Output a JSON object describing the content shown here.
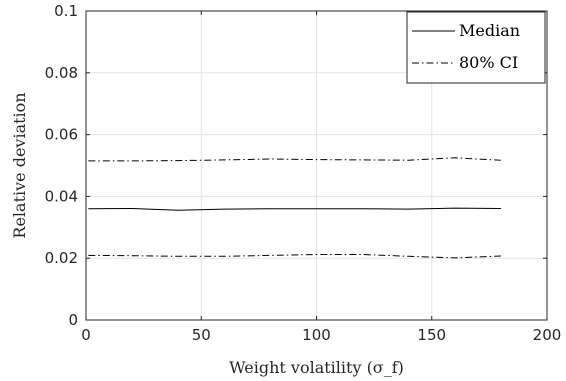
{
  "chart_data": {
    "type": "line",
    "xlabel": "Weight volatility (σ_f)",
    "ylabel": "Relative deviation",
    "xlim": [
      0,
      200
    ],
    "ylim": [
      0,
      0.1
    ],
    "xticks": [
      0,
      50,
      100,
      150,
      200
    ],
    "xtick_labels": [
      "0",
      "50",
      "100",
      "150",
      "200"
    ],
    "yticks": [
      0,
      0.02,
      0.04,
      0.06,
      0.08,
      0.1
    ],
    "ytick_labels": [
      "0",
      "0.02",
      "0.04",
      "0.06",
      "0.08",
      "0.1"
    ],
    "grid": true,
    "legend_position": "top-right",
    "x": [
      1,
      20,
      40,
      60,
      80,
      100,
      120,
      140,
      160,
      180
    ],
    "series": [
      {
        "name": "Median",
        "style": "solid",
        "color": "#000000",
        "values": [
          0.036,
          0.0361,
          0.0355,
          0.0359,
          0.036,
          0.036,
          0.036,
          0.0359,
          0.0362,
          0.0361
        ]
      },
      {
        "name": "80% CI",
        "style": "dashdot",
        "color": "#000000",
        "values": [
          0.0515,
          0.0515,
          0.0516,
          0.0518,
          0.0521,
          0.0519,
          0.0518,
          0.0517,
          0.0525,
          0.0517
        ]
      },
      {
        "name": "",
        "style": "dashdot",
        "color": "#000000",
        "values": [
          0.0209,
          0.0208,
          0.0206,
          0.0206,
          0.0209,
          0.0212,
          0.0212,
          0.0206,
          0.0201,
          0.0207
        ]
      }
    ],
    "legend": [
      {
        "label": "Median",
        "style": "solid"
      },
      {
        "label": "80% CI",
        "style": "dashdot"
      }
    ]
  }
}
